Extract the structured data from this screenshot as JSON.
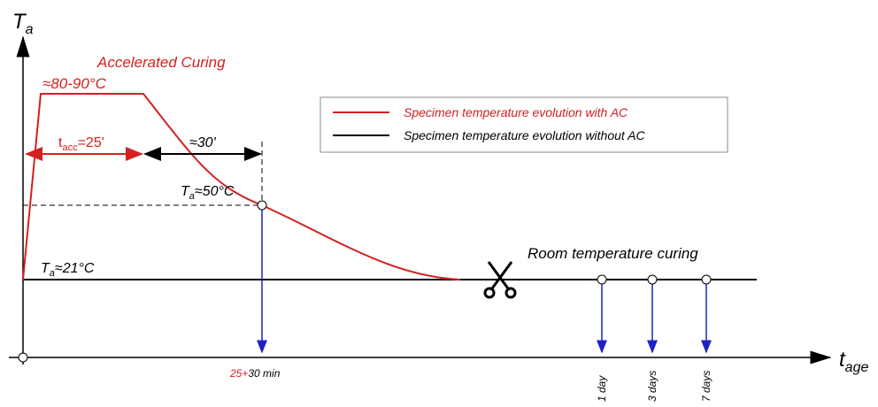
{
  "axes": {
    "y": {
      "main": "T",
      "sub": "a"
    },
    "x": {
      "main": "t",
      "sub": "age"
    }
  },
  "title": "Accelerated Curing",
  "peak_label": "≈80-90°C",
  "t_acc_label": {
    "main": "t",
    "sub": "acc",
    "rest": "=25'"
  },
  "wait_label": "≈30'",
  "temp_50_label": {
    "main": "T",
    "sub": "a",
    "rest": "≈50°C"
  },
  "temp_21_label": {
    "main": "T",
    "sub": "a",
    "rest": "≈21°C"
  },
  "legend": [
    "Specimen temperature evolution with AC",
    "Specimen temperature evolution without AC"
  ],
  "room_label": "Room temperature curing",
  "time_label": {
    "red": "25+",
    "black": "30 min"
  },
  "ages": [
    "1 day",
    "3 days",
    "7 days"
  ]
}
